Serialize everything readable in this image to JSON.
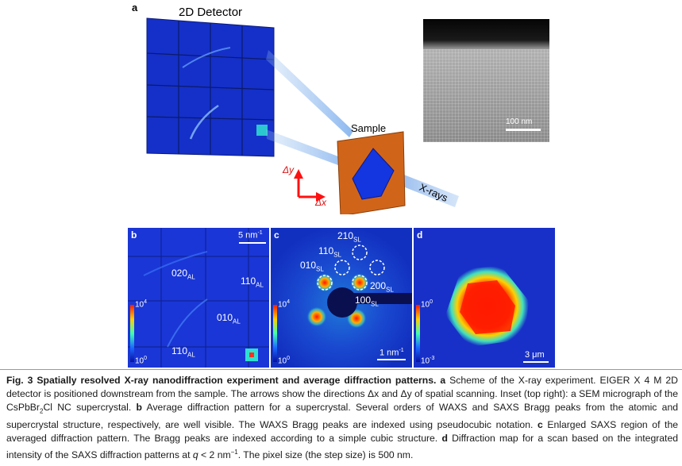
{
  "panel_a": {
    "label": "a",
    "detector_title": "2D Detector",
    "sample_label": "Sample",
    "xray_label": "X-rays",
    "dy_label": "Δy",
    "dx_label": "Δx",
    "inset_scale": "100 nm"
  },
  "panel_b": {
    "label": "b",
    "scale": "5 nm",
    "scale_sup": "-1",
    "peaks": [
      {
        "main": "020",
        "sub": "AL"
      },
      {
        "main": "110",
        "sub": "AL"
      },
      {
        "main": "010",
        "sub": "AL"
      },
      {
        "main": "1̄10",
        "sub": "AL"
      }
    ],
    "cb_top": "10",
    "cb_top_sup": "4",
    "cb_bottom": "10",
    "cb_bottom_sup": "0"
  },
  "panel_c": {
    "label": "c",
    "scale": "1 nm",
    "scale_sup": "-1",
    "peaks": [
      {
        "main": "210",
        "sub": "SL"
      },
      {
        "main": "110",
        "sub": "SL"
      },
      {
        "main": "010",
        "sub": "SL"
      },
      {
        "main": "200",
        "sub": "SL"
      },
      {
        "main": "100",
        "sub": "SL"
      }
    ],
    "cb_top": "10",
    "cb_top_sup": "4",
    "cb_bottom": "10",
    "cb_bottom_sup": "0"
  },
  "panel_d": {
    "label": "d",
    "scale": "3 μm",
    "cb_top": "10",
    "cb_top_sup": "0",
    "cb_bottom": "10",
    "cb_bottom_sup": "-3"
  },
  "caption": {
    "title": "Fig. 3 Spatially resolved X-ray nanodiffraction experiment and average diffraction patterns.",
    "a_letter": "a",
    "a_text": " Scheme of the X-ray experiment. EIGER X 4 M 2D detector is positioned downstream from the sample. The arrows show the directions Δx and Δy of spatial scanning. Inset (top right): a SEM micrograph of the CsPbBr",
    "a_sub": "2",
    "a_text2": "Cl NC supercrystal.",
    "b_letter": "b",
    "b_text": " Average diffraction pattern for a supercrystal. Several orders of WAXS and SAXS Bragg peaks from the atomic and supercrystal structure, respectively, are well visible. The WAXS Bragg peaks are indexed using pseudocubic notation.",
    "c_letter": "c",
    "c_text": " Enlarged SAXS region of the averaged diffraction pattern. The Bragg peaks are indexed according to a simple cubic structure.",
    "d_letter": "d",
    "d_text": " Diffraction map for a scan based on the integrated intensity of the SAXS diffraction patterns at ",
    "d_q": "q",
    "d_text2": " < 2 nm",
    "d_sup": "−1",
    "d_text3": ". The pixel size (the step size) is 500 nm."
  }
}
